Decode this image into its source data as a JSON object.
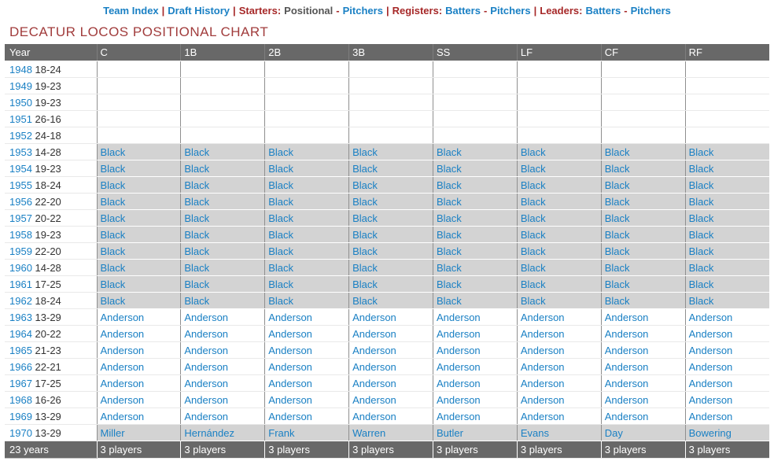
{
  "nav": {
    "items": [
      {
        "label": "Team Index",
        "type": "link",
        "name": "nav-team-index"
      },
      {
        "label": "|",
        "type": "sep",
        "name": "nav-separator"
      },
      {
        "label": "Draft History",
        "type": "link",
        "name": "nav-draft-history"
      },
      {
        "label": "|",
        "type": "sep",
        "name": "nav-separator"
      },
      {
        "label": "Starters:",
        "type": "section",
        "name": "nav-starters-label"
      },
      {
        "label": "Positional",
        "type": "current",
        "name": "nav-starters-positional-current"
      },
      {
        "label": "-",
        "type": "sep",
        "name": "nav-separator"
      },
      {
        "label": "Pitchers",
        "type": "link",
        "name": "nav-starters-pitchers"
      },
      {
        "label": "|",
        "type": "sep",
        "name": "nav-separator"
      },
      {
        "label": "Registers:",
        "type": "section",
        "name": "nav-registers-label"
      },
      {
        "label": "Batters",
        "type": "link",
        "name": "nav-registers-batters"
      },
      {
        "label": "-",
        "type": "sep",
        "name": "nav-separator"
      },
      {
        "label": "Pitchers",
        "type": "link",
        "name": "nav-registers-pitchers"
      },
      {
        "label": "|",
        "type": "sep",
        "name": "nav-separator"
      },
      {
        "label": "Leaders:",
        "type": "section",
        "name": "nav-leaders-label"
      },
      {
        "label": "Batters",
        "type": "link",
        "name": "nav-leaders-batters"
      },
      {
        "label": "-",
        "type": "sep",
        "name": "nav-separator"
      },
      {
        "label": "Pitchers",
        "type": "link",
        "name": "nav-leaders-pitchers"
      }
    ]
  },
  "title": "DECATUR LOCOS POSITIONAL CHART",
  "table": {
    "columns": [
      "Year",
      "C",
      "1B",
      "2B",
      "3B",
      "SS",
      "LF",
      "CF",
      "RF"
    ],
    "rows": [
      {
        "year": "1948",
        "record": "18-24",
        "shaded": false,
        "players": [
          "",
          "",
          "",
          "",
          "",
          "",
          "",
          ""
        ]
      },
      {
        "year": "1949",
        "record": "19-23",
        "shaded": false,
        "players": [
          "",
          "",
          "",
          "",
          "",
          "",
          "",
          ""
        ]
      },
      {
        "year": "1950",
        "record": "19-23",
        "shaded": false,
        "players": [
          "",
          "",
          "",
          "",
          "",
          "",
          "",
          ""
        ]
      },
      {
        "year": "1951",
        "record": "26-16",
        "shaded": false,
        "players": [
          "",
          "",
          "",
          "",
          "",
          "",
          "",
          ""
        ]
      },
      {
        "year": "1952",
        "record": "24-18",
        "shaded": false,
        "players": [
          "",
          "",
          "",
          "",
          "",
          "",
          "",
          ""
        ]
      },
      {
        "year": "1953",
        "record": "14-28",
        "shaded": true,
        "players": [
          "Black",
          "Black",
          "Black",
          "Black",
          "Black",
          "Black",
          "Black",
          "Black"
        ]
      },
      {
        "year": "1954",
        "record": "19-23",
        "shaded": true,
        "players": [
          "Black",
          "Black",
          "Black",
          "Black",
          "Black",
          "Black",
          "Black",
          "Black"
        ]
      },
      {
        "year": "1955",
        "record": "18-24",
        "shaded": true,
        "players": [
          "Black",
          "Black",
          "Black",
          "Black",
          "Black",
          "Black",
          "Black",
          "Black"
        ]
      },
      {
        "year": "1956",
        "record": "22-20",
        "shaded": true,
        "players": [
          "Black",
          "Black",
          "Black",
          "Black",
          "Black",
          "Black",
          "Black",
          "Black"
        ]
      },
      {
        "year": "1957",
        "record": "20-22",
        "shaded": true,
        "players": [
          "Black",
          "Black",
          "Black",
          "Black",
          "Black",
          "Black",
          "Black",
          "Black"
        ]
      },
      {
        "year": "1958",
        "record": "19-23",
        "shaded": true,
        "players": [
          "Black",
          "Black",
          "Black",
          "Black",
          "Black",
          "Black",
          "Black",
          "Black"
        ]
      },
      {
        "year": "1959",
        "record": "22-20",
        "shaded": true,
        "players": [
          "Black",
          "Black",
          "Black",
          "Black",
          "Black",
          "Black",
          "Black",
          "Black"
        ]
      },
      {
        "year": "1960",
        "record": "14-28",
        "shaded": true,
        "players": [
          "Black",
          "Black",
          "Black",
          "Black",
          "Black",
          "Black",
          "Black",
          "Black"
        ]
      },
      {
        "year": "1961",
        "record": "17-25",
        "shaded": true,
        "players": [
          "Black",
          "Black",
          "Black",
          "Black",
          "Black",
          "Black",
          "Black",
          "Black"
        ]
      },
      {
        "year": "1962",
        "record": "18-24",
        "shaded": true,
        "players": [
          "Black",
          "Black",
          "Black",
          "Black",
          "Black",
          "Black",
          "Black",
          "Black"
        ]
      },
      {
        "year": "1963",
        "record": "13-29",
        "shaded": false,
        "players": [
          "Anderson",
          "Anderson",
          "Anderson",
          "Anderson",
          "Anderson",
          "Anderson",
          "Anderson",
          "Anderson"
        ]
      },
      {
        "year": "1964",
        "record": "20-22",
        "shaded": false,
        "players": [
          "Anderson",
          "Anderson",
          "Anderson",
          "Anderson",
          "Anderson",
          "Anderson",
          "Anderson",
          "Anderson"
        ]
      },
      {
        "year": "1965",
        "record": "21-23",
        "shaded": false,
        "players": [
          "Anderson",
          "Anderson",
          "Anderson",
          "Anderson",
          "Anderson",
          "Anderson",
          "Anderson",
          "Anderson"
        ]
      },
      {
        "year": "1966",
        "record": "22-21",
        "shaded": false,
        "players": [
          "Anderson",
          "Anderson",
          "Anderson",
          "Anderson",
          "Anderson",
          "Anderson",
          "Anderson",
          "Anderson"
        ]
      },
      {
        "year": "1967",
        "record": "17-25",
        "shaded": false,
        "players": [
          "Anderson",
          "Anderson",
          "Anderson",
          "Anderson",
          "Anderson",
          "Anderson",
          "Anderson",
          "Anderson"
        ]
      },
      {
        "year": "1968",
        "record": "16-26",
        "shaded": false,
        "players": [
          "Anderson",
          "Anderson",
          "Anderson",
          "Anderson",
          "Anderson",
          "Anderson",
          "Anderson",
          "Anderson"
        ]
      },
      {
        "year": "1969",
        "record": "13-29",
        "shaded": false,
        "players": [
          "Anderson",
          "Anderson",
          "Anderson",
          "Anderson",
          "Anderson",
          "Anderson",
          "Anderson",
          "Anderson"
        ]
      },
      {
        "year": "1970",
        "record": "13-29",
        "shaded": true,
        "players": [
          "Miller",
          "Hernández",
          "Frank",
          "Warren",
          "Butler",
          "Evans",
          "Day",
          "Bowering"
        ]
      }
    ],
    "footer": {
      "years_total": "23 years",
      "cells": [
        "3 players",
        "3 players",
        "3 players",
        "3 players",
        "3 players",
        "3 players",
        "3 players",
        "3 players"
      ]
    }
  },
  "colors": {
    "link_blue": "#1a80c4",
    "nav_red": "#a62828",
    "nav_current": "#555555",
    "title_red": "#a13c3c",
    "header_bg": "#686868",
    "header_text": "#ffffff",
    "shaded_row": "#d3d3d3",
    "record_text": "#333333",
    "row_border": "#e9e9e9",
    "col_divider": "#8f8f8f"
  }
}
